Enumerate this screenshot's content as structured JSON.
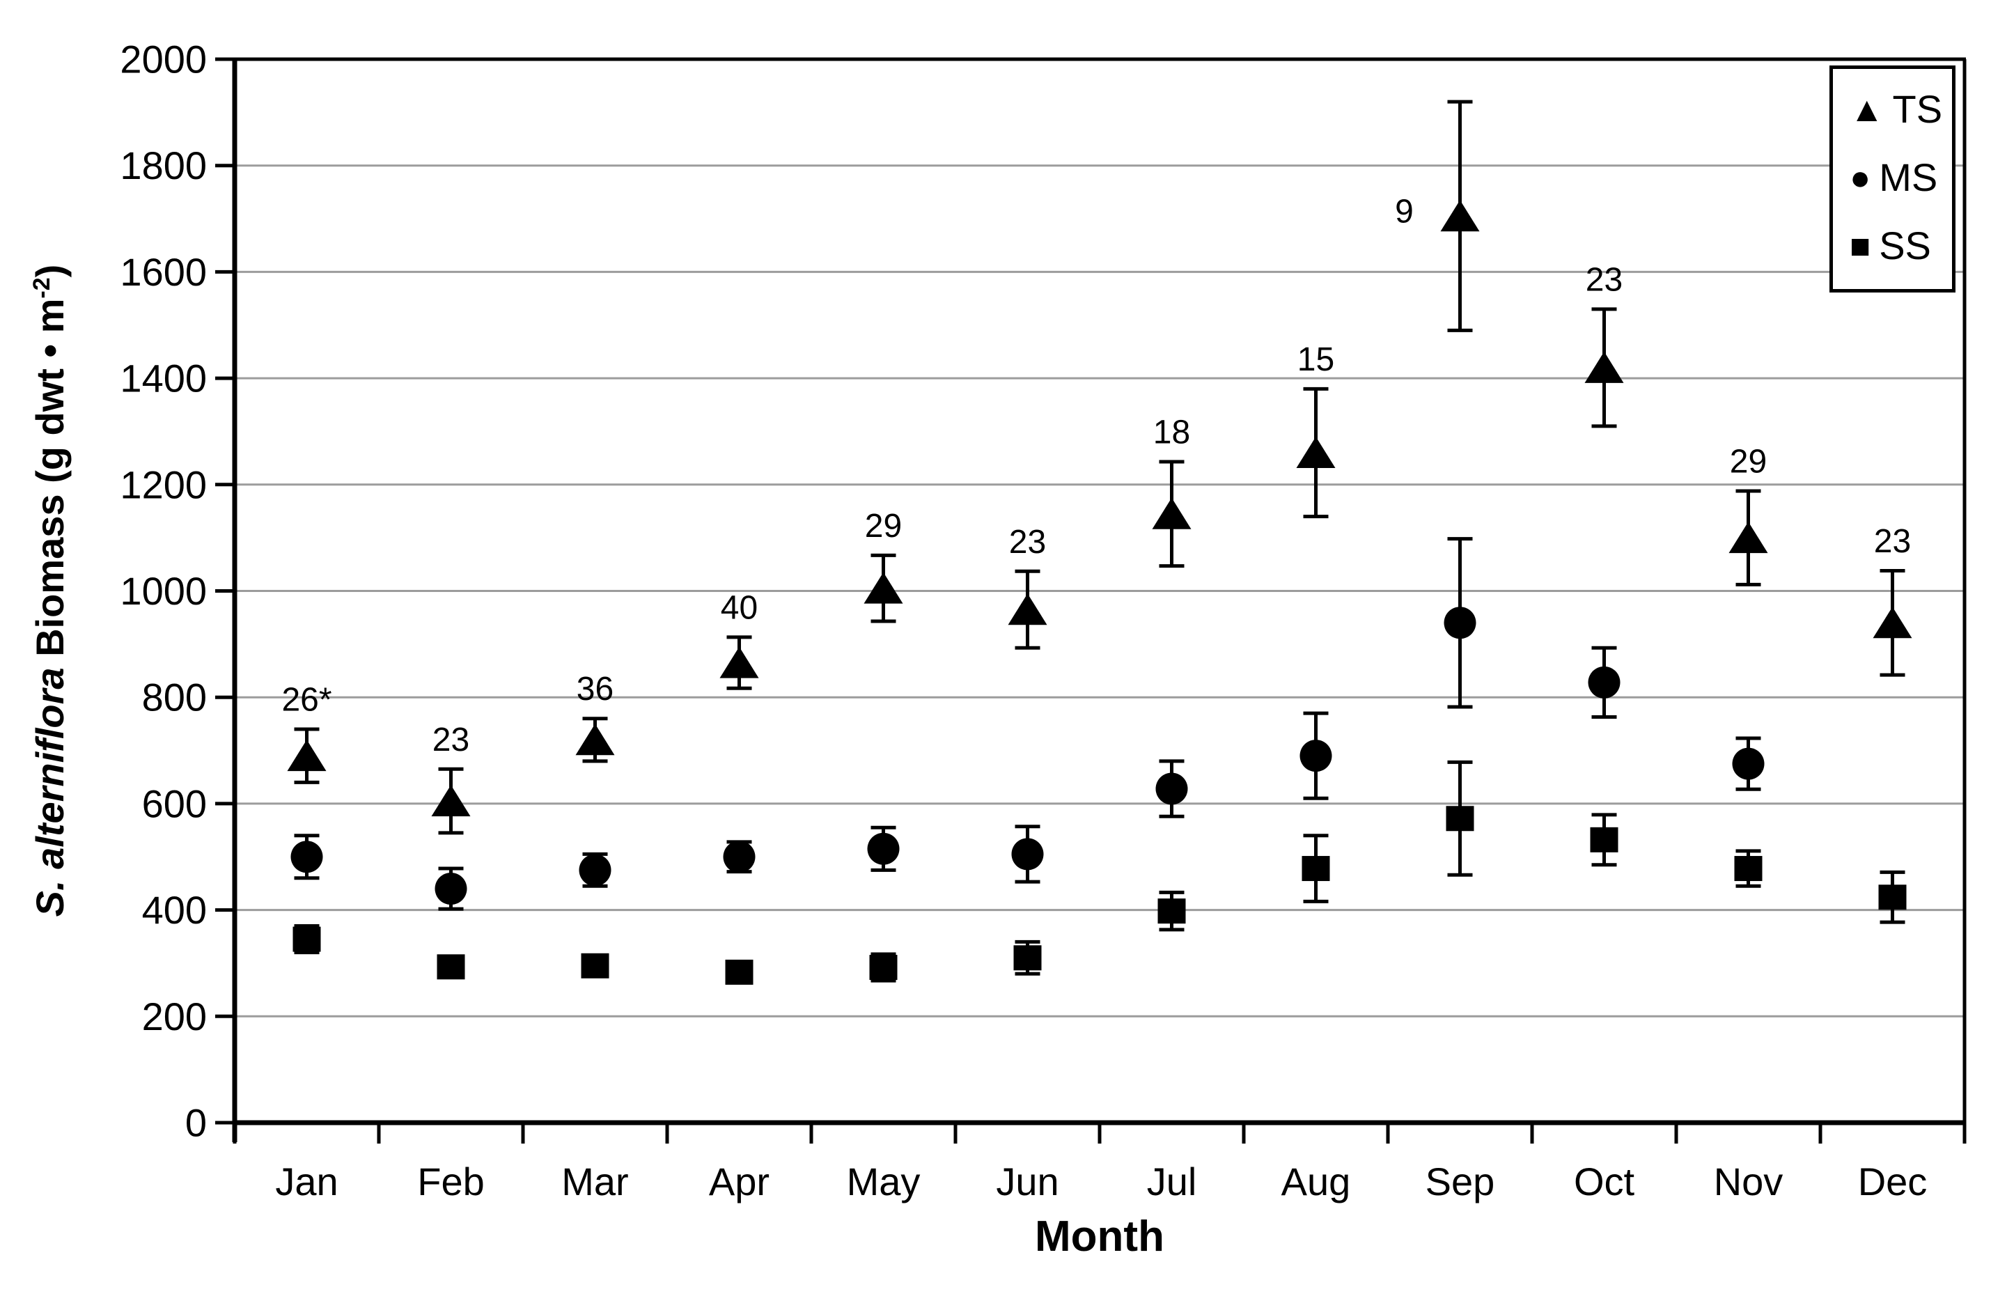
{
  "chart_data": {
    "type": "scatter",
    "title": "",
    "xlabel": "Month",
    "ylabel": "S. alterniflora Biomass (g dwt • m-2)",
    "ylabel_parts": {
      "species": "S. alterniflora",
      "rest": " Biomass (g dwt • m",
      "superscript": "-2",
      "close": ")"
    },
    "categories": [
      "Jan",
      "Feb",
      "Mar",
      "Apr",
      "May",
      "Jun",
      "Jul",
      "Aug",
      "Sep",
      "Oct",
      "Nov",
      "Dec"
    ],
    "ylim": [
      0,
      2000
    ],
    "ytick_step": 200,
    "ytick_labels": [
      "0",
      "200",
      "400",
      "600",
      "800",
      "1000",
      "1200",
      "1400",
      "1600",
      "1800",
      "2000"
    ],
    "grid": true,
    "legend_position": "top-right",
    "colors": {
      "marker": "#000000",
      "axis": "#000000",
      "gridline": "#9C9C9C",
      "background": "#FFFFFF"
    },
    "series": [
      {
        "name": "TS",
        "marker": "triangle",
        "glyph": "▲",
        "values": [
          690,
          605,
          720,
          865,
          1005,
          965,
          1145,
          1260,
          1705,
          1420,
          1100,
          940
        ],
        "errors": [
          50,
          60,
          40,
          48,
          62,
          72,
          98,
          120,
          215,
          110,
          88,
          98
        ]
      },
      {
        "name": "MS",
        "marker": "circle",
        "glyph": "●",
        "values": [
          500,
          440,
          475,
          500,
          515,
          505,
          628,
          690,
          940,
          828,
          675,
          null
        ],
        "errors": [
          40,
          38,
          30,
          28,
          40,
          52,
          52,
          80,
          158,
          65,
          48,
          null
        ]
      },
      {
        "name": "SS",
        "marker": "square",
        "glyph": "■",
        "values": [
          345,
          293,
          295,
          283,
          292,
          310,
          398,
          478,
          572,
          532,
          478,
          424
        ],
        "errors": [
          25,
          10,
          10,
          10,
          25,
          30,
          35,
          62,
          106,
          47,
          33,
          47
        ]
      }
    ],
    "annotations": [
      {
        "text": "26*",
        "month": "Jan",
        "month_index": 0,
        "series": "TS",
        "placement": "above"
      },
      {
        "text": "23",
        "month": "Feb",
        "month_index": 1,
        "series": "TS",
        "placement": "above"
      },
      {
        "text": "36",
        "month": "Mar",
        "month_index": 2,
        "series": "TS",
        "placement": "above"
      },
      {
        "text": "40",
        "month": "Apr",
        "month_index": 3,
        "series": "TS",
        "placement": "above"
      },
      {
        "text": "29",
        "month": "May",
        "month_index": 4,
        "series": "TS",
        "placement": "above"
      },
      {
        "text": "23",
        "month": "Jun",
        "month_index": 5,
        "series": "TS",
        "placement": "above"
      },
      {
        "text": "18",
        "month": "Jul",
        "month_index": 6,
        "series": "TS",
        "placement": "above"
      },
      {
        "text": "15",
        "month": "Aug",
        "month_index": 7,
        "series": "TS",
        "placement": "above"
      },
      {
        "text": "9",
        "month": "Sep",
        "month_index": 8,
        "series": "TS",
        "placement": "left"
      },
      {
        "text": "23",
        "month": "Oct",
        "month_index": 9,
        "series": "TS",
        "placement": "above"
      },
      {
        "text": "29",
        "month": "Nov",
        "month_index": 10,
        "series": "TS",
        "placement": "above"
      },
      {
        "text": "23",
        "month": "Dec",
        "month_index": 11,
        "series": "TS",
        "placement": "above"
      }
    ]
  }
}
